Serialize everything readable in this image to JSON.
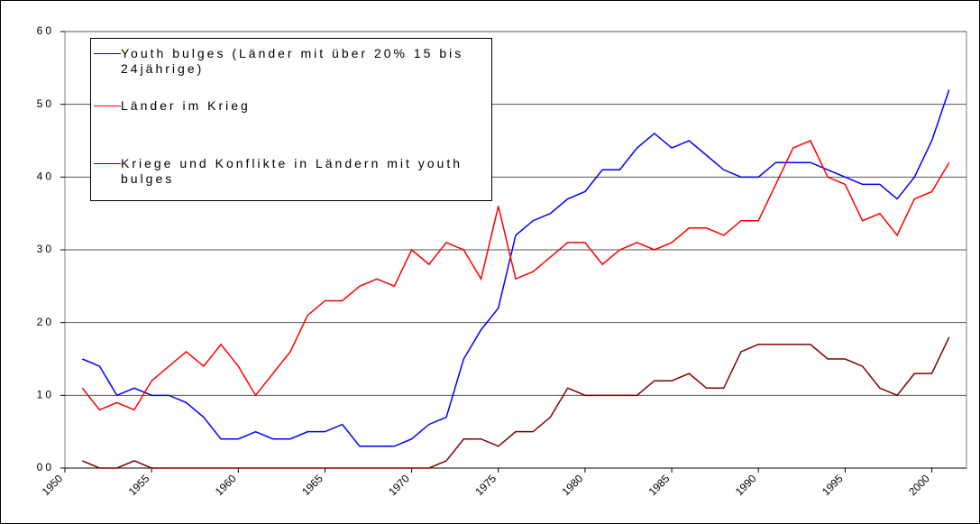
{
  "chart_data": {
    "type": "line",
    "x": [
      1951,
      1952,
      1953,
      1954,
      1955,
      1956,
      1957,
      1958,
      1959,
      1960,
      1961,
      1962,
      1963,
      1964,
      1965,
      1966,
      1967,
      1968,
      1969,
      1970,
      1971,
      1972,
      1973,
      1974,
      1975,
      1976,
      1977,
      1978,
      1979,
      1980,
      1981,
      1982,
      1983,
      1984,
      1985,
      1986,
      1987,
      1988,
      1989,
      1990,
      1991,
      1992,
      1993,
      1994,
      1995,
      1996,
      1997,
      1998,
      1999,
      2000,
      2001
    ],
    "series": [
      {
        "name": "Youth bulges (Länder mit über 20% 15 bis 24jährige)",
        "color": "#0000ff",
        "values": [
          15,
          14,
          10,
          11,
          10,
          10,
          9,
          7,
          4,
          4,
          5,
          4,
          4,
          5,
          5,
          6,
          3,
          3,
          3,
          4,
          6,
          7,
          15,
          19,
          22,
          32,
          34,
          35,
          37,
          38,
          41,
          41,
          44,
          46,
          44,
          45,
          43,
          41,
          40,
          40,
          42,
          42,
          42,
          41,
          40,
          39,
          39,
          37,
          40,
          45,
          52
        ]
      },
      {
        "name": "Länder im Krieg",
        "color": "#ff0000",
        "values": [
          11,
          8,
          9,
          8,
          12,
          14,
          16,
          14,
          17,
          14,
          10,
          13,
          16,
          21,
          23,
          23,
          25,
          26,
          25,
          30,
          28,
          31,
          30,
          26,
          36,
          26,
          27,
          29,
          31,
          31,
          28,
          30,
          31,
          30,
          31,
          33,
          33,
          32,
          34,
          34,
          39,
          44,
          45,
          40,
          39,
          34,
          35,
          32,
          37,
          38,
          42
        ]
      },
      {
        "name": "Kriege und Konflikte in Ländern mit youth bulges",
        "color": "#800000",
        "values": [
          1,
          0,
          0,
          1,
          0,
          0,
          0,
          0,
          0,
          0,
          0,
          0,
          0,
          0,
          0,
          0,
          0,
          0,
          0,
          0,
          0,
          1,
          4,
          4,
          3,
          5,
          5,
          7,
          11,
          10,
          10,
          10,
          10,
          12,
          12,
          13,
          11,
          11,
          16,
          17,
          17,
          17,
          17,
          15,
          15,
          14,
          11,
          10,
          13,
          13,
          18
        ]
      }
    ],
    "xlim": [
      1950,
      2002
    ],
    "xticks": [
      1950,
      1955,
      1960,
      1965,
      1970,
      1975,
      1980,
      1985,
      1990,
      1995,
      2000
    ],
    "ylim": [
      0,
      60
    ],
    "yticks": [
      {
        "value": 0,
        "label": "00"
      },
      10,
      20,
      30,
      40,
      50,
      60
    ],
    "grid": true
  }
}
